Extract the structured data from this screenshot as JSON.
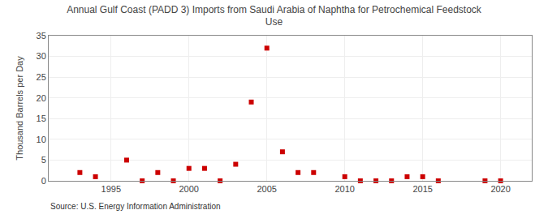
{
  "chart_data": {
    "type": "scatter",
    "title": "Annual Gulf Coast (PADD 3) Imports from Saudi Arabia of Naphtha for Petrochemical Feedstock\nUse",
    "ylabel": "Thousand Barrels per Day",
    "annotations": [
      "Source: U.S. Energy Information Administration"
    ],
    "x": [
      1993,
      1994,
      1996,
      1997,
      1998,
      1999,
      2000,
      2001,
      2002,
      2003,
      2004,
      2005,
      2006,
      2007,
      2008,
      2010,
      2011,
      2012,
      2013,
      2014,
      2015,
      2016,
      2019,
      2020
    ],
    "values": [
      2,
      1,
      5,
      0,
      2,
      0,
      3,
      3,
      0,
      4,
      19,
      32,
      7,
      2,
      2,
      1,
      0,
      0,
      0,
      1,
      1,
      0,
      0,
      0
    ],
    "color": "#cc0000",
    "marker": "square",
    "xlim": [
      1991,
      2022
    ],
    "xticks": [
      1995,
      2000,
      2005,
      2010,
      2015,
      2020
    ],
    "ylim": [
      0,
      35
    ],
    "yticks": [
      0,
      5,
      10,
      15,
      20,
      25,
      30,
      35
    ],
    "grid": true
  }
}
